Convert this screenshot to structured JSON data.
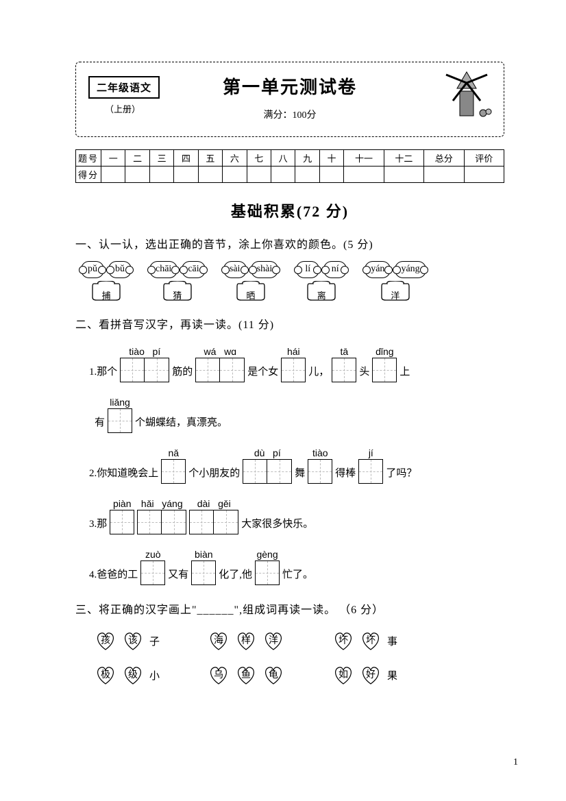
{
  "header": {
    "grade": "二年级语文",
    "book": "（上册）",
    "title": "第一单元测试卷",
    "full_score": "满分：100分"
  },
  "score_table": {
    "row1_label": "题号",
    "row2_label": "得分",
    "cols": [
      "一",
      "二",
      "三",
      "四",
      "五",
      "六",
      "七",
      "八",
      "九",
      "十",
      "十一",
      "十二",
      "总分",
      "评价"
    ]
  },
  "section1": {
    "title": "基础积累(72 分)"
  },
  "q1": {
    "head": "一、认一认，选出正确的音节，涂上你喜欢的颜色。(5 分)",
    "pairs": [
      {
        "opts": [
          "pǔ",
          "bǔ"
        ],
        "char": "捕"
      },
      {
        "opts": [
          "chāi",
          "cāi"
        ],
        "char": "猜"
      },
      {
        "opts": [
          "sài",
          "shài"
        ],
        "char": "晒"
      },
      {
        "opts": [
          "lí",
          "ní"
        ],
        "char": "离"
      },
      {
        "opts": [
          "yán",
          "yáng"
        ],
        "char": "洋"
      }
    ]
  },
  "q2": {
    "head": "二、看拼音写汉字，再读一读。(11 分)",
    "line1": {
      "pre": "1.那个",
      "b1": [
        "tiào",
        "pí"
      ],
      "t1": "筋的",
      "b2": [
        "wá",
        "wɑ"
      ],
      "t2": "是个女",
      "b3": [
        "hái"
      ],
      "t3": "儿，",
      "b4": [
        "tā"
      ],
      "t4": "头",
      "b5": [
        "dǐng"
      ],
      "t5": "上"
    },
    "line1b": {
      "pre": "有",
      "b1": [
        "liǎng"
      ],
      "t1": "个蝴蝶结，真漂亮。"
    },
    "line2": {
      "pre": "2.你知道晚会上",
      "b1": [
        "nǎ"
      ],
      "t1": "个小朋友的",
      "b2": [
        "dù",
        "pí"
      ],
      "t2": "舞",
      "b3": [
        "tiào"
      ],
      "t3": "得棒",
      "b4": [
        "jí"
      ],
      "t4": "了吗？"
    },
    "line3": {
      "pre": "3.那",
      "b1": [
        "piàn"
      ],
      "b2": [
        "hǎi",
        "yáng"
      ],
      "b3": [
        "dài",
        "gěi"
      ],
      "t1": "大家很多快乐。"
    },
    "line4": {
      "pre": "4.爸爸的工",
      "b1": [
        "zuò"
      ],
      "t1": "又有",
      "b2": [
        "biàn"
      ],
      "t2": "化了,他",
      "b3": [
        "gèng"
      ],
      "t3": "忙了。"
    }
  },
  "q3": {
    "head": "三、将正确的汉字画上\"______\",组成词再读一读。 （6 分）",
    "rows": [
      [
        {
          "h": [
            "孩",
            "该"
          ],
          "t": "子"
        },
        {
          "h": [
            "海",
            "样"
          ],
          "t": ""
        },
        {
          "h": [
            "洋"
          ],
          "t": ""
        },
        {
          "h": [
            "坏",
            "坏"
          ],
          "t": "事"
        }
      ],
      [
        {
          "h": [
            "极",
            "级"
          ],
          "t": "小"
        },
        {
          "h": [
            "乌",
            "鱼"
          ],
          "t": ""
        },
        {
          "h": [
            "龟"
          ],
          "t": ""
        },
        {
          "h": [
            "如",
            "好"
          ],
          "t": "果"
        }
      ]
    ],
    "row1": [
      {
        "opts": [
          "孩",
          "该"
        ],
        "tail": "子"
      },
      {
        "opts": [
          "海",
          "样",
          "洋"
        ],
        "tail": ""
      },
      {
        "opts": [
          "坏",
          "坏"
        ],
        "tail": "事"
      }
    ],
    "row2": [
      {
        "opts": [
          "极",
          "级"
        ],
        "tail": "小"
      },
      {
        "opts": [
          "乌",
          "鱼",
          "龟"
        ],
        "tail": ""
      },
      {
        "opts": [
          "如",
          "好"
        ],
        "tail": "果"
      }
    ]
  },
  "page_num": "1"
}
